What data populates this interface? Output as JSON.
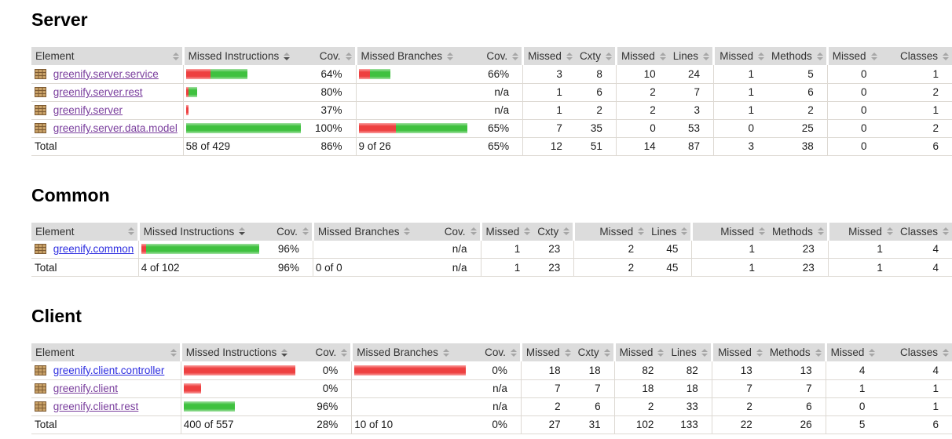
{
  "columns": [
    "Element",
    "Missed Instructions",
    "Cov.",
    "Missed Branches",
    "Cov.",
    "Missed",
    "Cxty",
    "Missed",
    "Lines",
    "Missed",
    "Methods",
    "Missed",
    "Classes"
  ],
  "sorted_column": "Missed Instructions",
  "colors": {
    "missed_red": "#ee4040",
    "covered_green": "#3fc13f",
    "link_blue": "#2e2ee0",
    "link_visited_purple": "#7a3e9d",
    "header_bg": "#dcdcdc"
  },
  "chart_data": {
    "type": "table",
    "note": "JaCoCo-style coverage report; bar segments are pixel widths of missed(red)/covered(green)",
    "tables": "see sections"
  },
  "sections": [
    {
      "title": "Server",
      "rows": [
        {
          "name": "greenify.server.service",
          "visited": true,
          "instr_bar": {
            "red": 31,
            "green": 47
          },
          "instr_cov": "64%",
          "branch_bar": {
            "red": 14,
            "green": 26
          },
          "branch_cov": "66%",
          "cells": [
            "3",
            "8",
            "10",
            "24",
            "1",
            "5",
            "0",
            "1"
          ]
        },
        {
          "name": "greenify.server.rest",
          "visited": true,
          "instr_bar": {
            "red": 3,
            "green": 11
          },
          "instr_cov": "80%",
          "branch_bar": null,
          "branch_cov": "n/a",
          "cells": [
            "1",
            "6",
            "2",
            "7",
            "1",
            "6",
            "0",
            "2"
          ]
        },
        {
          "name": "greenify.server",
          "visited": true,
          "instr_bar": {
            "red": 3,
            "green": 0
          },
          "instr_cov": "37%",
          "branch_bar": null,
          "branch_cov": "n/a",
          "cells": [
            "1",
            "2",
            "2",
            "3",
            "1",
            "2",
            "0",
            "1"
          ]
        },
        {
          "name": "greenify.server.data.model",
          "visited": true,
          "instr_bar": {
            "red": 0,
            "green": 146
          },
          "instr_cov": "100%",
          "branch_bar": {
            "red": 47,
            "green": 91
          },
          "branch_cov": "65%",
          "cells": [
            "7",
            "35",
            "0",
            "53",
            "0",
            "25",
            "0",
            "2"
          ]
        }
      ],
      "total": {
        "label": "Total",
        "instr_text": "58 of 429",
        "instr_cov": "86%",
        "branch_text": "9 of 26",
        "branch_cov": "65%",
        "cells": [
          "12",
          "51",
          "14",
          "87",
          "3",
          "38",
          "0",
          "6"
        ]
      }
    },
    {
      "title": "Common",
      "rows": [
        {
          "name": "greenify.common",
          "visited": false,
          "instr_bar": {
            "red": 6,
            "green": 144
          },
          "instr_cov": "96%",
          "branch_bar": null,
          "branch_cov": "n/a",
          "cells": [
            "1",
            "23",
            "2",
            "45",
            "1",
            "23",
            "1",
            "4"
          ]
        }
      ],
      "total": {
        "label": "Total",
        "instr_text": "4 of 102",
        "instr_cov": "96%",
        "branch_text": "0 of 0",
        "branch_cov": "n/a",
        "cells": [
          "1",
          "23",
          "2",
          "45",
          "1",
          "23",
          "1",
          "4"
        ]
      }
    },
    {
      "title": "Client",
      "rows": [
        {
          "name": "greenify.client.controller",
          "visited": false,
          "instr_bar": {
            "red": 142,
            "green": 0
          },
          "instr_cov": "0%",
          "branch_bar": {
            "red": 142,
            "green": 0
          },
          "branch_cov": "0%",
          "cells": [
            "18",
            "18",
            "82",
            "82",
            "13",
            "13",
            "4",
            "4"
          ]
        },
        {
          "name": "greenify.client",
          "visited": true,
          "instr_bar": {
            "red": 22,
            "green": 0
          },
          "instr_cov": "0%",
          "branch_bar": null,
          "branch_cov": "n/a",
          "cells": [
            "7",
            "7",
            "18",
            "18",
            "7",
            "7",
            "1",
            "1"
          ]
        },
        {
          "name": "greenify.client.rest",
          "visited": true,
          "instr_bar": {
            "red": 0,
            "green": 65
          },
          "instr_cov": "96%",
          "branch_bar": null,
          "branch_cov": "n/a",
          "cells": [
            "2",
            "6",
            "2",
            "33",
            "2",
            "6",
            "0",
            "1"
          ]
        }
      ],
      "total": {
        "label": "Total",
        "instr_text": "400 of 557",
        "instr_cov": "28%",
        "branch_text": "10 of 10",
        "branch_cov": "0%",
        "cells": [
          "27",
          "31",
          "102",
          "133",
          "22",
          "26",
          "5",
          "6"
        ]
      }
    }
  ]
}
